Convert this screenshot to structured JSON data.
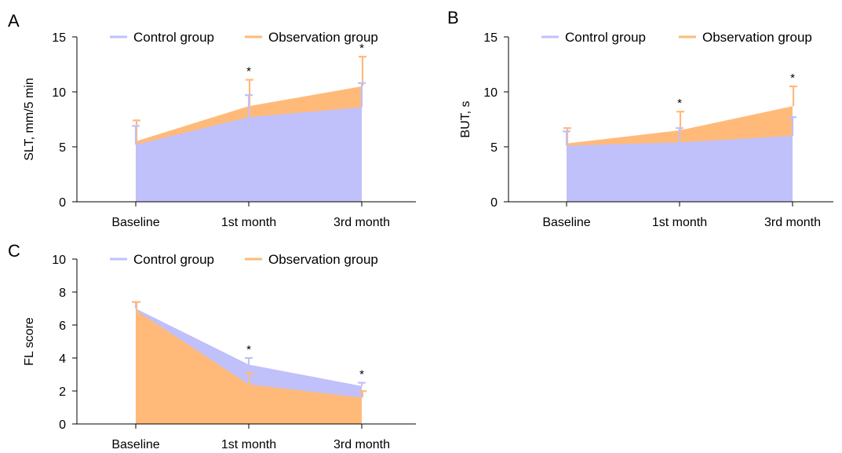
{
  "colors": {
    "control": "#c0c0fb",
    "observation": "#ffba7a",
    "axis": "#000000"
  },
  "chart_data": [
    {
      "panel": "A",
      "type": "area",
      "ylabel": "SLT, mm/5 min",
      "categories": [
        "Baseline",
        "1st month",
        "3rd month"
      ],
      "yticks": [
        "0",
        "5",
        "10",
        "15"
      ],
      "ylim": [
        0,
        15
      ],
      "legend": "top",
      "series": [
        {
          "name": "Control group",
          "values": [
            5.2,
            7.7,
            8.6
          ],
          "err_upper": [
            6.9,
            9.7,
            10.8
          ]
        },
        {
          "name": "Observation group",
          "values": [
            5.5,
            8.7,
            10.5
          ],
          "err_upper": [
            7.4,
            11.1,
            13.2
          ]
        }
      ],
      "significance": [
        "",
        "*",
        "*"
      ]
    },
    {
      "panel": "B",
      "type": "area",
      "ylabel": "BUT, s",
      "categories": [
        "Baseline",
        "1st month",
        "3rd month"
      ],
      "yticks": [
        "0",
        "5",
        "10",
        "15"
      ],
      "ylim": [
        0,
        15
      ],
      "legend": "top",
      "series": [
        {
          "name": "Control group",
          "values": [
            5.1,
            5.4,
            6.0
          ],
          "err_upper": [
            6.4,
            6.7,
            7.7
          ]
        },
        {
          "name": "Observation group",
          "values": [
            5.3,
            6.5,
            8.7
          ],
          "err_upper": [
            6.7,
            8.2,
            10.5
          ]
        }
      ],
      "significance": [
        "",
        "*",
        "*"
      ]
    },
    {
      "panel": "C",
      "type": "area",
      "ylabel": "FL score",
      "categories": [
        "Baseline",
        "1st month",
        "3rd month"
      ],
      "yticks": [
        "0",
        "2",
        "4",
        "6",
        "8",
        "10"
      ],
      "ylim": [
        0,
        10
      ],
      "legend": "top",
      "series": [
        {
          "name": "Control group",
          "values": [
            7.0,
            3.6,
            2.3
          ],
          "err_upper": [
            7.4,
            4.0,
            2.5
          ]
        },
        {
          "name": "Observation group",
          "values": [
            6.9,
            2.4,
            1.6
          ],
          "err_upper": [
            7.4,
            3.1,
            2.0
          ]
        }
      ],
      "significance": [
        "",
        "*",
        "*"
      ]
    }
  ]
}
